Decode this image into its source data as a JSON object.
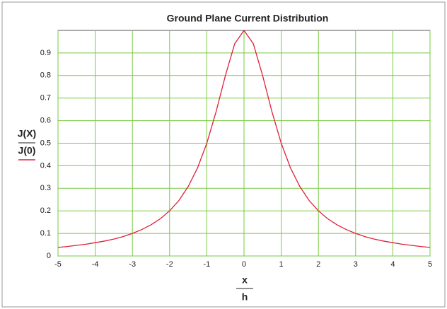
{
  "chart_data": {
    "type": "line",
    "title": "Ground Plane Current Distribution",
    "ylabel": [
      "J(X)",
      "J(0)"
    ],
    "xlabel": [
      "x",
      "h"
    ],
    "x": [
      -5,
      -4.75,
      -4.5,
      -4.25,
      -4,
      -3.75,
      -3.5,
      -3.25,
      -3,
      -2.75,
      -2.5,
      -2.25,
      -2,
      -1.75,
      -1.5,
      -1.25,
      -1,
      -0.75,
      -0.5,
      -0.25,
      0,
      0.25,
      0.5,
      0.75,
      1,
      1.25,
      1.5,
      1.75,
      2,
      2.25,
      2.5,
      2.75,
      3,
      3.25,
      3.5,
      3.75,
      4,
      4.25,
      4.5,
      4.75,
      5
    ],
    "series": [
      {
        "color": "#e0203a",
        "values": [
          0.038,
          0.042,
          0.047,
          0.052,
          0.059,
          0.066,
          0.075,
          0.086,
          0.1,
          0.117,
          0.138,
          0.165,
          0.2,
          0.246,
          0.308,
          0.39,
          0.5,
          0.64,
          0.8,
          0.941,
          1,
          0.941,
          0.8,
          0.64,
          0.5,
          0.39,
          0.308,
          0.246,
          0.2,
          0.165,
          0.138,
          0.117,
          0.1,
          0.086,
          0.075,
          0.066,
          0.059,
          0.052,
          0.047,
          0.042,
          0.038
        ]
      }
    ],
    "xlim": [
      -5,
      5
    ],
    "xticks": [
      -5,
      -4,
      -3,
      -2,
      -1,
      0,
      1,
      2,
      3,
      4,
      5
    ],
    "ylim": [
      0,
      1
    ],
    "yticks": [
      0,
      0.1,
      0.2,
      0.3,
      0.4,
      0.5,
      0.6,
      0.7,
      0.8,
      0.9
    ],
    "grid": true,
    "grid_color": "#7ac943"
  }
}
